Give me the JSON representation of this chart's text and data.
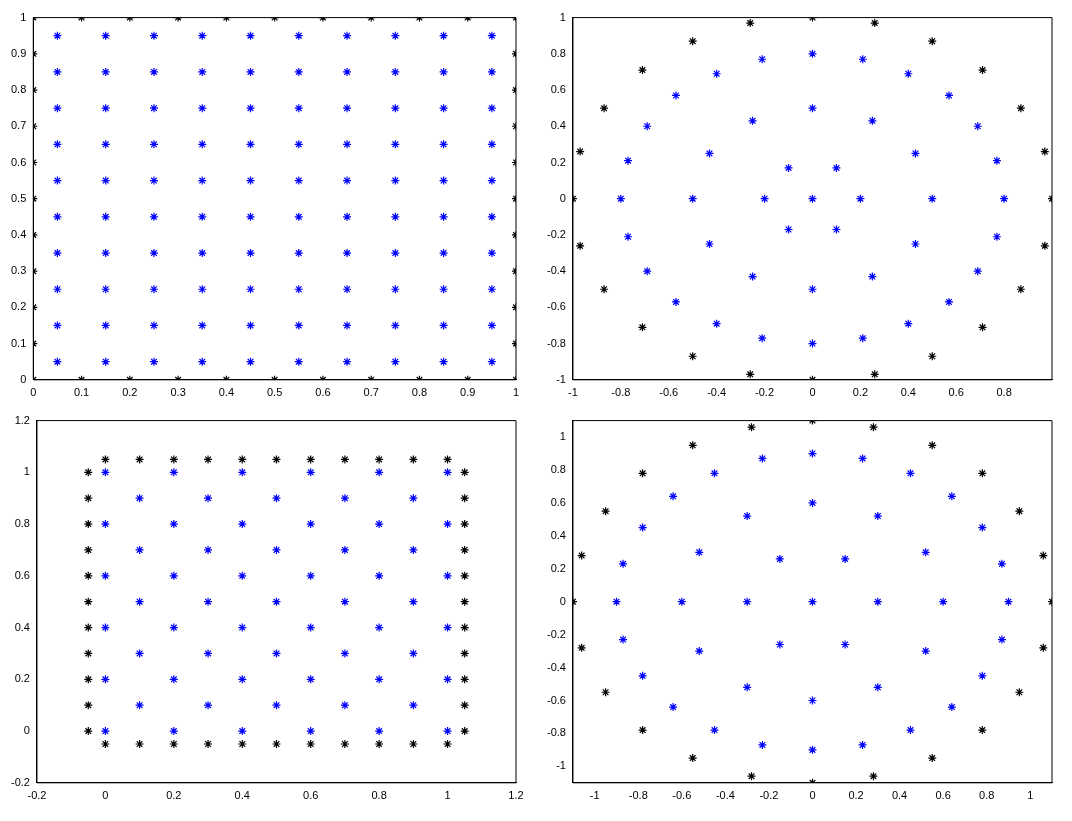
{
  "chart_data": [
    {
      "type": "scatter",
      "marker": "cross",
      "xlim": [
        0,
        1
      ],
      "ylim": [
        0,
        1
      ],
      "xticks": [
        0,
        0.1,
        0.2,
        0.3,
        0.4,
        0.5,
        0.6,
        0.7,
        0.8,
        0.9,
        1
      ],
      "yticks": [
        0,
        0.1,
        0.2,
        0.3,
        0.4,
        0.5,
        0.6,
        0.7,
        0.8,
        0.9,
        1
      ],
      "series": [
        {
          "color": "#000000",
          "x": [
            0,
            0.1,
            0.2,
            0.3,
            0.4,
            0.5,
            0.6,
            0.7,
            0.8,
            0.9,
            1,
            0,
            0.1,
            0.2,
            0.3,
            0.4,
            0.5,
            0.6,
            0.7,
            0.8,
            0.9,
            1,
            0,
            0,
            0,
            0,
            0,
            0,
            0,
            0,
            0,
            1,
            1,
            1,
            1,
            1,
            1,
            1,
            1,
            1
          ],
          "values": [
            0,
            0,
            0,
            0,
            0,
            0,
            0,
            0,
            0,
            0,
            0,
            1,
            1,
            1,
            1,
            1,
            1,
            1,
            1,
            1,
            1,
            1,
            0.1,
            0.2,
            0.3,
            0.4,
            0.5,
            0.6,
            0.7,
            0.8,
            0.9,
            0.1,
            0.2,
            0.3,
            0.4,
            0.5,
            0.6,
            0.7,
            0.8,
            0.9
          ]
        },
        {
          "color": "#0000ff",
          "x": [
            0.05,
            0.15,
            0.25,
            0.35,
            0.45,
            0.55,
            0.65,
            0.75,
            0.85,
            0.95,
            0.05,
            0.15,
            0.25,
            0.35,
            0.45,
            0.55,
            0.65,
            0.75,
            0.85,
            0.95,
            0.05,
            0.15,
            0.25,
            0.35,
            0.45,
            0.55,
            0.65,
            0.75,
            0.85,
            0.95,
            0.05,
            0.15,
            0.25,
            0.35,
            0.45,
            0.55,
            0.65,
            0.75,
            0.85,
            0.95,
            0.05,
            0.15,
            0.25,
            0.35,
            0.45,
            0.55,
            0.65,
            0.75,
            0.85,
            0.95,
            0.05,
            0.15,
            0.25,
            0.35,
            0.45,
            0.55,
            0.65,
            0.75,
            0.85,
            0.95,
            0.05,
            0.15,
            0.25,
            0.35,
            0.45,
            0.55,
            0.65,
            0.75,
            0.85,
            0.95,
            0.05,
            0.15,
            0.25,
            0.35,
            0.45,
            0.55,
            0.65,
            0.75,
            0.85,
            0.95,
            0.05,
            0.15,
            0.25,
            0.35,
            0.45,
            0.55,
            0.65,
            0.75,
            0.85,
            0.95,
            0.05,
            0.15,
            0.25,
            0.35,
            0.45,
            0.55,
            0.65,
            0.75,
            0.85,
            0.95
          ],
          "values": [
            0.05,
            0.05,
            0.05,
            0.05,
            0.05,
            0.05,
            0.05,
            0.05,
            0.05,
            0.05,
            0.15,
            0.15,
            0.15,
            0.15,
            0.15,
            0.15,
            0.15,
            0.15,
            0.15,
            0.15,
            0.25,
            0.25,
            0.25,
            0.25,
            0.25,
            0.25,
            0.25,
            0.25,
            0.25,
            0.25,
            0.35,
            0.35,
            0.35,
            0.35,
            0.35,
            0.35,
            0.35,
            0.35,
            0.35,
            0.35,
            0.45,
            0.45,
            0.45,
            0.45,
            0.45,
            0.45,
            0.45,
            0.45,
            0.45,
            0.45,
            0.55,
            0.55,
            0.55,
            0.55,
            0.55,
            0.55,
            0.55,
            0.55,
            0.55,
            0.55,
            0.65,
            0.65,
            0.65,
            0.65,
            0.65,
            0.65,
            0.65,
            0.65,
            0.65,
            0.65,
            0.75,
            0.75,
            0.75,
            0.75,
            0.75,
            0.75,
            0.75,
            0.75,
            0.75,
            0.75,
            0.85,
            0.85,
            0.85,
            0.85,
            0.85,
            0.85,
            0.85,
            0.85,
            0.85,
            0.85,
            0.95,
            0.95,
            0.95,
            0.95,
            0.95,
            0.95,
            0.95,
            0.95,
            0.95,
            0.95
          ]
        }
      ]
    },
    {
      "type": "scatter",
      "marker": "cross",
      "xlim": [
        -1,
        1
      ],
      "ylim": [
        -1,
        1
      ],
      "xticks": [
        -1,
        -0.8,
        -0.6,
        -0.4,
        -0.2,
        0,
        0.2,
        0.4,
        0.6,
        0.8
      ],
      "yticks": [
        -1,
        -0.8,
        -0.6,
        -0.4,
        -0.2,
        0,
        0.2,
        0.4,
        0.6,
        0.8,
        1
      ],
      "series": [
        {
          "color": "#000000",
          "x": [
            1,
            0.97,
            0.87,
            0.71,
            0.5,
            0.26,
            0,
            -0.26,
            -0.5,
            -0.71,
            -0.87,
            -0.97,
            -1,
            -0.97,
            -0.87,
            -0.71,
            -0.5,
            -0.26,
            0,
            0.26,
            0.5,
            0.71,
            0.87,
            0.97
          ],
          "values": [
            0,
            0.26,
            0.5,
            0.71,
            0.87,
            0.97,
            1,
            0.97,
            0.87,
            0.71,
            0.5,
            0.26,
            0,
            -0.26,
            -0.5,
            -0.71,
            -0.87,
            -0.97,
            -1,
            -0.97,
            -0.87,
            -0.71,
            -0.5,
            -0.26
          ]
        },
        {
          "color": "#0000ff",
          "x": [
            0.8,
            0.77,
            0.69,
            0.57,
            0.4,
            0.21,
            0,
            -0.21,
            -0.4,
            -0.57,
            -0.69,
            -0.77,
            -0.8,
            -0.77,
            -0.69,
            -0.57,
            -0.4,
            -0.21,
            0,
            0.21,
            0.4,
            0.57,
            0.69,
            0.77,
            0.5,
            0.43,
            0.25,
            0,
            -0.25,
            -0.43,
            -0.5,
            -0.43,
            -0.25,
            0,
            0.25,
            0.43,
            0.2,
            0.1,
            -0.1,
            -0.2,
            -0.1,
            0.1,
            0
          ],
          "values": [
            0,
            0.21,
            0.4,
            0.57,
            0.69,
            0.77,
            0.8,
            0.77,
            0.69,
            0.57,
            0.4,
            0.21,
            0,
            -0.21,
            -0.4,
            -0.57,
            -0.69,
            -0.77,
            -0.8,
            -0.77,
            -0.69,
            -0.57,
            -0.4,
            -0.21,
            0,
            0.25,
            0.43,
            0.5,
            0.43,
            0.25,
            0,
            -0.25,
            -0.43,
            -0.5,
            -0.43,
            -0.25,
            0,
            0.17,
            0.17,
            0,
            -0.17,
            -0.17,
            0
          ]
        }
      ]
    },
    {
      "type": "scatter",
      "marker": "cross",
      "xlim": [
        -0.2,
        1.2
      ],
      "ylim": [
        -0.2,
        1.2
      ],
      "xticks": [
        -0.2,
        0,
        0.2,
        0.4,
        0.6,
        0.8,
        1,
        1.2
      ],
      "yticks": [
        -0.2,
        0,
        0.2,
        0.4,
        0.6,
        0.8,
        1,
        1.2
      ],
      "series": [
        {
          "color": "#000000",
          "x": [
            0,
            0.1,
            0.2,
            0.3,
            0.4,
            0.5,
            0.6,
            0.7,
            0.8,
            0.9,
            1,
            0,
            0.1,
            0.2,
            0.3,
            0.4,
            0.5,
            0.6,
            0.7,
            0.8,
            0.9,
            1,
            -0.05,
            -0.05,
            -0.05,
            -0.05,
            -0.05,
            -0.05,
            -0.05,
            -0.05,
            -0.05,
            -0.05,
            -0.05,
            1.05,
            1.05,
            1.05,
            1.05,
            1.05,
            1.05,
            1.05,
            1.05,
            1.05,
            1.05,
            1.05
          ],
          "values": [
            -0.05,
            -0.05,
            -0.05,
            -0.05,
            -0.05,
            -0.05,
            -0.05,
            -0.05,
            -0.05,
            -0.05,
            -0.05,
            1.05,
            1.05,
            1.05,
            1.05,
            1.05,
            1.05,
            1.05,
            1.05,
            1.05,
            1.05,
            1.05,
            0,
            0.1,
            0.2,
            0.3,
            0.4,
            0.5,
            0.6,
            0.7,
            0.8,
            0.9,
            1,
            0,
            0.1,
            0.2,
            0.3,
            0.4,
            0.5,
            0.6,
            0.7,
            0.8,
            0.9,
            1
          ]
        },
        {
          "color": "#0000ff",
          "x": [
            0,
            0.2,
            0.4,
            0.6,
            0.8,
            1,
            0.1,
            0.3,
            0.5,
            0.7,
            0.9,
            0,
            0.2,
            0.4,
            0.6,
            0.8,
            1,
            0.1,
            0.3,
            0.5,
            0.7,
            0.9,
            0,
            0.2,
            0.4,
            0.6,
            0.8,
            1,
            0.1,
            0.3,
            0.5,
            0.7,
            0.9,
            0,
            0.2,
            0.4,
            0.6,
            0.8,
            1,
            0.1,
            0.3,
            0.5,
            0.7,
            0.9,
            0,
            0.2,
            0.4,
            0.6,
            0.8,
            1,
            0.1,
            0.3,
            0.5,
            0.7,
            0.9,
            0,
            0.2,
            0.4,
            0.6,
            0.8,
            1
          ],
          "values": [
            0,
            0,
            0,
            0,
            0,
            0,
            0.1,
            0.1,
            0.1,
            0.1,
            0.1,
            0.2,
            0.2,
            0.2,
            0.2,
            0.2,
            0.2,
            0.3,
            0.3,
            0.3,
            0.3,
            0.3,
            0.4,
            0.4,
            0.4,
            0.4,
            0.4,
            0.4,
            0.5,
            0.5,
            0.5,
            0.5,
            0.5,
            0.6,
            0.6,
            0.6,
            0.6,
            0.6,
            0.6,
            0.7,
            0.7,
            0.7,
            0.7,
            0.7,
            0.8,
            0.8,
            0.8,
            0.8,
            0.8,
            0.8,
            0.9,
            0.9,
            0.9,
            0.9,
            0.9,
            1,
            1,
            1,
            1,
            1,
            1
          ]
        }
      ]
    },
    {
      "type": "scatter",
      "marker": "cross",
      "xlim": [
        -1.1,
        1.1
      ],
      "ylim": [
        -1.1,
        1.1
      ],
      "xticks": [
        -1,
        -0.8,
        -0.6,
        -0.4,
        -0.2,
        0,
        0.2,
        0.4,
        0.6,
        0.8,
        1
      ],
      "yticks": [
        -1,
        -0.8,
        -0.6,
        -0.4,
        -0.2,
        0,
        0.2,
        0.4,
        0.6,
        0.8,
        1
      ],
      "series": [
        {
          "color": "#000000",
          "x": [
            1.1,
            1.06,
            0.95,
            0.78,
            0.55,
            0.28,
            0,
            -0.28,
            -0.55,
            -0.78,
            -0.95,
            -1.06,
            -1.1,
            -1.06,
            -0.95,
            -0.78,
            -0.55,
            -0.28,
            0,
            0.28,
            0.55,
            0.78,
            0.95,
            1.06
          ],
          "values": [
            0,
            0.28,
            0.55,
            0.78,
            0.95,
            1.06,
            1.1,
            1.06,
            0.95,
            0.78,
            0.55,
            0.28,
            0,
            -0.28,
            -0.55,
            -0.78,
            -0.95,
            -1.06,
            -1.1,
            -1.06,
            -0.95,
            -0.78,
            -0.55,
            -0.28
          ]
        },
        {
          "color": "#0000ff",
          "x": [
            0.9,
            0.87,
            0.78,
            0.64,
            0.45,
            0.23,
            0,
            -0.23,
            -0.45,
            -0.64,
            -0.78,
            -0.87,
            -0.9,
            -0.87,
            -0.78,
            -0.64,
            -0.45,
            -0.23,
            0,
            0.23,
            0.45,
            0.64,
            0.78,
            0.87,
            0.6,
            0.52,
            0.3,
            0,
            -0.3,
            -0.52,
            -0.6,
            -0.52,
            -0.3,
            0,
            0.3,
            0.52,
            0.3,
            0.15,
            -0.15,
            -0.3,
            -0.15,
            0.15,
            0
          ],
          "values": [
            0,
            0.23,
            0.45,
            0.64,
            0.78,
            0.87,
            0.9,
            0.87,
            0.78,
            0.64,
            0.45,
            0.23,
            0,
            -0.23,
            -0.45,
            -0.64,
            -0.78,
            -0.87,
            -0.9,
            -0.87,
            -0.78,
            -0.64,
            -0.45,
            -0.23,
            0,
            0.3,
            0.52,
            0.6,
            0.52,
            0.3,
            0,
            -0.3,
            -0.52,
            -0.6,
            -0.52,
            -0.3,
            0,
            0.26,
            0.26,
            0,
            -0.26,
            -0.26,
            0
          ]
        }
      ]
    }
  ]
}
